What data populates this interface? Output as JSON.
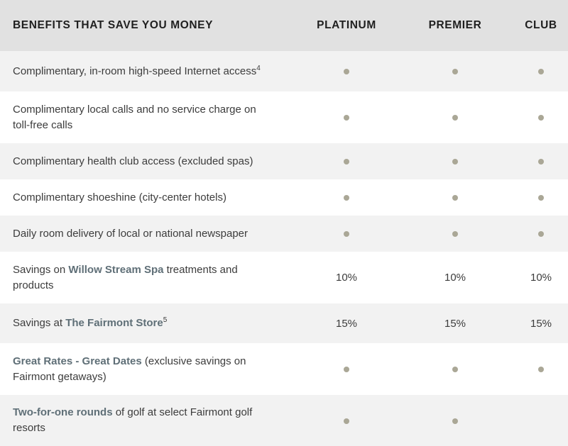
{
  "header": {
    "benefits": "BENEFITS THAT SAVE YOU MONEY",
    "platinum": "PLATINUM",
    "premier": "PREMIER",
    "club": "CLUB"
  },
  "rows": [
    {
      "text": "Complimentary, in-room high-speed Internet access",
      "sup": "4",
      "platinum": "dot",
      "premier": "dot",
      "club": "dot"
    },
    {
      "text": "Complimentary local calls and no service charge on toll-free calls",
      "platinum": "dot",
      "premier": "dot",
      "club": "dot"
    },
    {
      "text": "Complimentary health club access (excluded spas)",
      "platinum": "dot",
      "premier": "dot",
      "club": "dot"
    },
    {
      "text": "Complimentary shoeshine (city-center hotels)",
      "platinum": "dot",
      "premier": "dot",
      "club": "dot"
    },
    {
      "text": "Daily room delivery of local or national newspaper",
      "platinum": "dot",
      "premier": "dot",
      "club": "dot"
    },
    {
      "pre": "Savings on ",
      "link": "Willow Stream Spa",
      "post": " treatments and products",
      "platinum": "10%",
      "premier": "10%",
      "club": "10%"
    },
    {
      "pre": "Savings at ",
      "link": "The Fairmont Store",
      "sup": "5",
      "platinum": "15%",
      "premier": "15%",
      "club": "15%"
    },
    {
      "link": "Great Rates - Great Dates",
      "post": " (exclusive savings on Fairmont getaways)",
      "platinum": "dot",
      "premier": "dot",
      "club": "dot"
    },
    {
      "link": "Two-for-one rounds",
      "post": " of golf at select Fairmont golf resorts",
      "platinum": "dot",
      "premier": "dot",
      "club": ""
    }
  ],
  "colors": {
    "header_bg": "#e1e1e1",
    "shade_bg": "#f2f2f2",
    "dot": "#aaa796",
    "link": "#5f6f77"
  }
}
